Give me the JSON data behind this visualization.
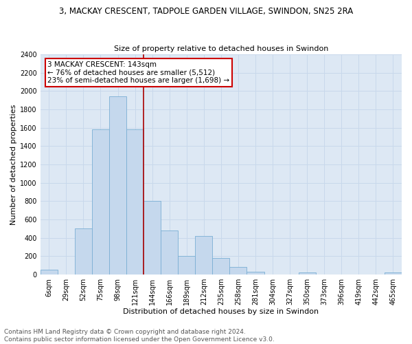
{
  "title_line1": "3, MACKAY CRESCENT, TADPOLE GARDEN VILLAGE, SWINDON, SN25 2RA",
  "title_line2": "Size of property relative to detached houses in Swindon",
  "xlabel": "Distribution of detached houses by size in Swindon",
  "ylabel": "Number of detached properties",
  "categories": [
    "6sqm",
    "29sqm",
    "52sqm",
    "75sqm",
    "98sqm",
    "121sqm",
    "144sqm",
    "166sqm",
    "189sqm",
    "212sqm",
    "235sqm",
    "258sqm",
    "281sqm",
    "304sqm",
    "327sqm",
    "350sqm",
    "373sqm",
    "396sqm",
    "419sqm",
    "442sqm",
    "465sqm"
  ],
  "values": [
    50,
    0,
    500,
    1580,
    1940,
    1580,
    800,
    480,
    200,
    420,
    180,
    80,
    30,
    0,
    0,
    20,
    0,
    0,
    0,
    0,
    20
  ],
  "bar_color": "#c5d8ed",
  "bar_edge_color": "#7aafd4",
  "vline_x_index": 6,
  "vline_color": "#aa0000",
  "annotation_text": "3 MACKAY CRESCENT: 143sqm\n← 76% of detached houses are smaller (5,512)\n23% of semi-detached houses are larger (1,698) →",
  "annotation_box_color": "#ffffff",
  "annotation_box_edge_color": "#cc0000",
  "ylim": [
    0,
    2400
  ],
  "yticks": [
    0,
    200,
    400,
    600,
    800,
    1000,
    1200,
    1400,
    1600,
    1800,
    2000,
    2200,
    2400
  ],
  "grid_color": "#c8d8eb",
  "background_color": "#dde8f4",
  "footer_line1": "Contains HM Land Registry data © Crown copyright and database right 2024.",
  "footer_line2": "Contains public sector information licensed under the Open Government Licence v3.0.",
  "title_fontsize": 8.5,
  "subtitle_fontsize": 8,
  "xlabel_fontsize": 8,
  "ylabel_fontsize": 8,
  "tick_fontsize": 7,
  "footer_fontsize": 6.5,
  "annot_fontsize": 7.5
}
